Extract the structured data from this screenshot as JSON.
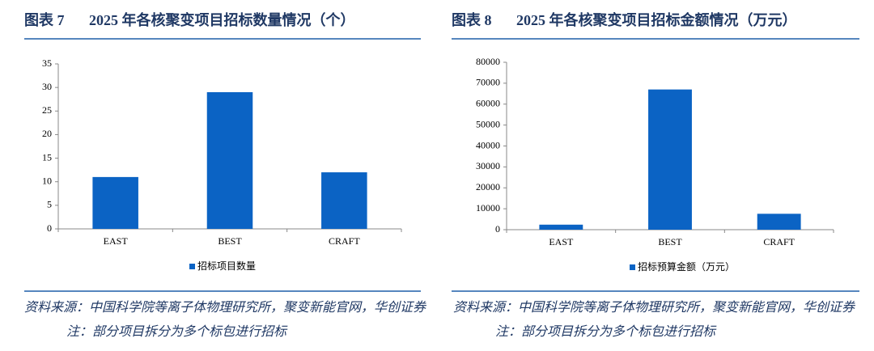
{
  "chart_data": [
    {
      "type": "bar",
      "label": "图表 7",
      "title": "2025 年各核聚变项目招标数量情况（个）",
      "categories": [
        "EAST",
        "BEST",
        "CRAFT"
      ],
      "series": [
        {
          "name": "招标项目数量",
          "color": "#0b63c4",
          "values": [
            11,
            29,
            12
          ]
        }
      ],
      "ylim": [
        0,
        35
      ],
      "yticks": [
        0,
        5,
        10,
        15,
        20,
        25,
        30,
        35
      ],
      "source": "资料来源：中国科学院等离子体物理研究所，聚变新能官网，华创证券",
      "note": "注：部分项目拆分为多个标包进行招标"
    },
    {
      "type": "bar",
      "label": "图表 8",
      "title": "2025 年各核聚变项目招标金额情况（万元）",
      "categories": [
        "EAST",
        "BEST",
        "CRAFT"
      ],
      "series": [
        {
          "name": "招标预算金额（万元）",
          "color": "#0b63c4",
          "values": [
            2400,
            67000,
            7600
          ]
        }
      ],
      "ylim": [
        0,
        80000
      ],
      "yticks": [
        0,
        10000,
        20000,
        30000,
        40000,
        50000,
        60000,
        70000,
        80000
      ],
      "source": "资料来源：中国科学院等离子体物理研究所，聚变新能官网，华创证券",
      "note": "注：部分项目拆分为多个标包进行招标"
    }
  ]
}
